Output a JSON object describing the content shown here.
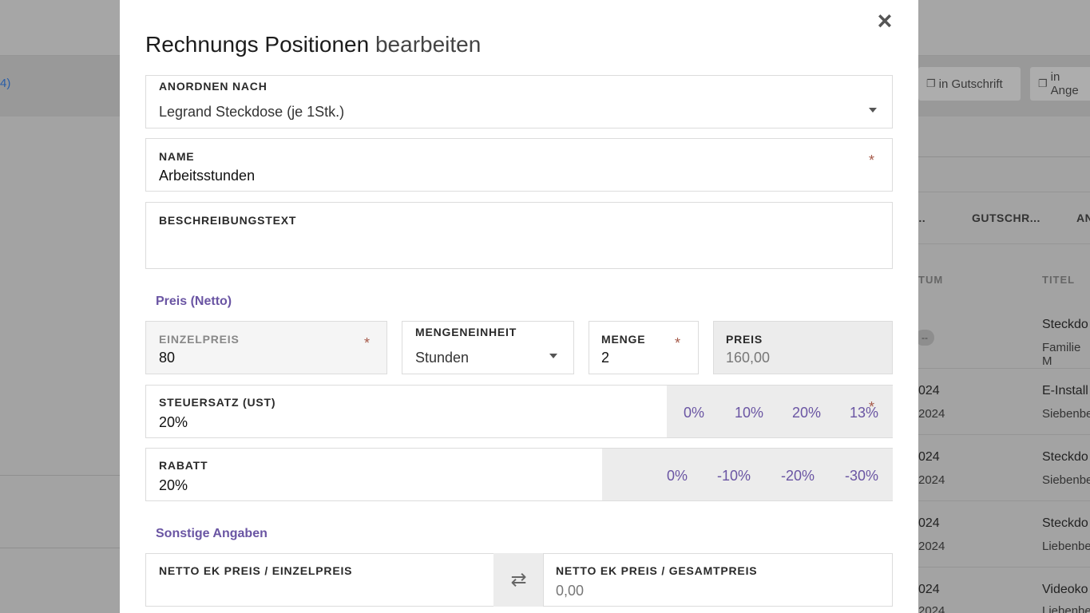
{
  "background": {
    "left_link": "4)",
    "actions": [
      {
        "label": "in Gutschrift",
        "icon": "copy-icon"
      },
      {
        "label": "in Ange",
        "icon": "copy-icon"
      }
    ],
    "tabs": [
      "...",
      "GUTSCHR...",
      "AN"
    ],
    "columns": [
      "TUM",
      "TITEL"
    ],
    "rows": [
      {
        "date1": "",
        "date2": "",
        "title": "Steckdo",
        "sub": "Familie M",
        "badge": "--"
      },
      {
        "date1": "024",
        "date2": "2024",
        "title": "E-Install",
        "sub": "Siebenbe"
      },
      {
        "date1": "024",
        "date2": "2024",
        "title": "Steckdo",
        "sub": "Siebenbe"
      },
      {
        "date1": "024",
        "date2": "2024",
        "title": "Steckdo",
        "sub": "Liebenbe"
      },
      {
        "date1": "024",
        "date2": "2024",
        "title": "Videoko",
        "sub": "Liebenbe"
      }
    ]
  },
  "modal": {
    "title_strong": "Rechnungs Positionen",
    "title_light": "bearbeiten",
    "close_symbol": "×",
    "arrange": {
      "label": "ANORDNEN NACH",
      "value": "Legrand Steckdose (je 1Stk.)"
    },
    "name": {
      "label": "NAME",
      "value": "Arbeitsstunden",
      "required": "*"
    },
    "description": {
      "label": "BESCHREIBUNGSTEXT",
      "value": ""
    },
    "price_section": "Preis (Netto)",
    "unit_price": {
      "label": "EINZELPREIS",
      "value": "80",
      "required": "*"
    },
    "unit": {
      "label": "MENGENEINHEIT",
      "value": "Stunden"
    },
    "quantity": {
      "label": "MENGE",
      "value": "2",
      "required": "*"
    },
    "total": {
      "label": "PREIS",
      "value": "160,00"
    },
    "tax": {
      "label": "STEUERSATZ (UST)",
      "value": "20%",
      "required": "*",
      "options": [
        "0%",
        "10%",
        "20%",
        "13%"
      ]
    },
    "discount": {
      "label": "RABATT",
      "value": "20%",
      "options": [
        "0%",
        "-10%",
        "-20%",
        "-30%"
      ]
    },
    "other_section": "Sonstige Angaben",
    "cost_unit": {
      "label": "NETTO EK PREIS / EINZELPREIS",
      "value": ""
    },
    "swap_symbol": "⇄",
    "cost_total": {
      "label": "NETTO EK PREIS / GESAMTPREIS",
      "value": "0,00"
    }
  },
  "colors": {
    "accent": "#6a55a3",
    "required": "#a65a4a",
    "link": "#2a5ea8"
  }
}
